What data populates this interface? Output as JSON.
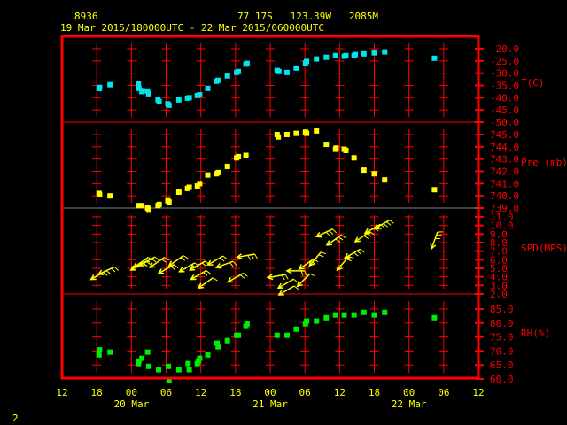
{
  "header": {
    "station": "8936",
    "location": "77.17S   123.39W   2085M",
    "range": "19 Mar 2015/180000UTC - 22 Mar 2015/060000UTC"
  },
  "footer": {
    "page": "2"
  },
  "colors": {
    "frame": "#ff0000",
    "text": "#ffff00",
    "temp": "#00e5ee",
    "pressure": "#ffff00",
    "wind": "#ffff00",
    "rh": "#00ee00",
    "divider": "#808080"
  },
  "chart_data": {
    "type": "scatter",
    "x_axis": {
      "start": "2015-03-19T12:00Z",
      "end": "2015-03-22T12:00Z",
      "tick_labels": [
        "12",
        "18",
        "00",
        "06",
        "12",
        "18",
        "00",
        "06",
        "12",
        "18",
        "00",
        "06",
        "12"
      ],
      "date_labels": [
        {
          "at": "2015-03-20T00:00Z",
          "label": "20 Mar"
        },
        {
          "at": "2015-03-21T00:00Z",
          "label": "21 Mar"
        },
        {
          "at": "2015-03-22T00:00Z",
          "label": "22 Mar"
        }
      ]
    },
    "panels": [
      {
        "name": "T(C)",
        "ylim": [
          -50,
          -20
        ],
        "ticks": [
          "-20.0",
          "-25.0",
          "-30.0",
          "-35.0",
          "-40.0",
          "-45.0",
          "-50.0"
        ],
        "color": "#00e5ee",
        "points": [
          [
            "2015-03-19T18:24Z",
            -36.3
          ],
          [
            "2015-03-19T18:30Z",
            -35.8
          ],
          [
            "2015-03-19T20:18Z",
            -34.7
          ],
          [
            "2015-03-20T01:12Z",
            -34.4
          ],
          [
            "2015-03-20T01:18Z",
            -36.2
          ],
          [
            "2015-03-20T01:48Z",
            -37.5
          ],
          [
            "2015-03-20T01:54Z",
            -37.1
          ],
          [
            "2015-03-20T02:48Z",
            -37.3
          ],
          [
            "2015-03-20T03:00Z",
            -38.4
          ],
          [
            "2015-03-20T04:36Z",
            -40.9
          ],
          [
            "2015-03-20T04:48Z",
            -41.6
          ],
          [
            "2015-03-20T06:18Z",
            -42.5
          ],
          [
            "2015-03-20T06:30Z",
            -43.1
          ],
          [
            "2015-03-20T08:12Z",
            -40.9
          ],
          [
            "2015-03-20T09:42Z",
            -40.2
          ],
          [
            "2015-03-20T10:00Z",
            -40.0
          ],
          [
            "2015-03-20T11:24Z",
            -39.1
          ],
          [
            "2015-03-20T11:48Z",
            -38.8
          ],
          [
            "2015-03-20T13:12Z",
            -36.2
          ],
          [
            "2015-03-20T14:42Z",
            -33.3
          ],
          [
            "2015-03-20T15:00Z",
            -32.9
          ],
          [
            "2015-03-20T16:36Z",
            -31.1
          ],
          [
            "2015-03-20T18:12Z",
            -29.7
          ],
          [
            "2015-03-20T18:30Z",
            -29.3
          ],
          [
            "2015-03-20T19:48Z",
            -26.3
          ],
          [
            "2015-03-20T20:00Z",
            -26.0
          ],
          [
            "2015-03-21T01:12Z",
            -28.9
          ],
          [
            "2015-03-21T01:30Z",
            -29.3
          ],
          [
            "2015-03-21T02:54Z",
            -29.7
          ],
          [
            "2015-03-21T04:30Z",
            -27.9
          ],
          [
            "2015-03-21T06:06Z",
            -25.9
          ],
          [
            "2015-03-21T06:18Z",
            -25.2
          ],
          [
            "2015-03-21T08:00Z",
            -24.2
          ],
          [
            "2015-03-21T09:42Z",
            -23.5
          ],
          [
            "2015-03-21T11:18Z",
            -22.8
          ],
          [
            "2015-03-21T12:48Z",
            -23.1
          ],
          [
            "2015-03-21T13:06Z",
            -22.8
          ],
          [
            "2015-03-21T14:30Z",
            -22.8
          ],
          [
            "2015-03-21T14:42Z",
            -22.4
          ],
          [
            "2015-03-21T16:12Z",
            -22.1
          ],
          [
            "2015-03-21T18:00Z",
            -21.7
          ],
          [
            "2015-03-21T19:48Z",
            -21.3
          ],
          [
            "2015-03-22T04:24Z",
            -23.9
          ]
        ]
      },
      {
        "name": "Pre (mb)",
        "ylim": [
          739,
          746
        ],
        "ticks": [
          "745.0",
          "744.0",
          "743.0",
          "742.0",
          "741.0",
          "740.0",
          "739.0"
        ],
        "color": "#ffff00",
        "points": [
          [
            "2015-03-19T18:24Z",
            740.2
          ],
          [
            "2015-03-19T18:30Z",
            740.1
          ],
          [
            "2015-03-19T20:18Z",
            740.0
          ],
          [
            "2015-03-20T01:12Z",
            739.2
          ],
          [
            "2015-03-20T01:48Z",
            739.2
          ],
          [
            "2015-03-20T02:48Z",
            739.0
          ],
          [
            "2015-03-20T03:00Z",
            738.9
          ],
          [
            "2015-03-20T04:36Z",
            739.2
          ],
          [
            "2015-03-20T04:48Z",
            739.3
          ],
          [
            "2015-03-20T06:18Z",
            739.6
          ],
          [
            "2015-03-20T06:30Z",
            739.5
          ],
          [
            "2015-03-20T08:12Z",
            740.3
          ],
          [
            "2015-03-20T09:42Z",
            740.6
          ],
          [
            "2015-03-20T10:00Z",
            740.7
          ],
          [
            "2015-03-20T11:24Z",
            740.8
          ],
          [
            "2015-03-20T11:48Z",
            741.0
          ],
          [
            "2015-03-20T13:12Z",
            741.7
          ],
          [
            "2015-03-20T14:42Z",
            741.8
          ],
          [
            "2015-03-20T15:00Z",
            741.9
          ],
          [
            "2015-03-20T16:36Z",
            742.4
          ],
          [
            "2015-03-20T18:12Z",
            743.1
          ],
          [
            "2015-03-20T18:30Z",
            743.2
          ],
          [
            "2015-03-20T19:48Z",
            743.3
          ],
          [
            "2015-03-21T01:12Z",
            745.0
          ],
          [
            "2015-03-21T01:24Z",
            744.8
          ],
          [
            "2015-03-21T02:54Z",
            745.0
          ],
          [
            "2015-03-21T04:30Z",
            745.1
          ],
          [
            "2015-03-21T06:06Z",
            745.2
          ],
          [
            "2015-03-21T06:18Z",
            745.1
          ],
          [
            "2015-03-21T08:00Z",
            745.3
          ],
          [
            "2015-03-21T09:42Z",
            744.2
          ],
          [
            "2015-03-21T11:18Z",
            743.8
          ],
          [
            "2015-03-21T11:24Z",
            743.9
          ],
          [
            "2015-03-21T12:48Z",
            743.8
          ],
          [
            "2015-03-21T13:06Z",
            743.7
          ],
          [
            "2015-03-21T14:30Z",
            743.1
          ],
          [
            "2015-03-21T16:12Z",
            742.1
          ],
          [
            "2015-03-21T18:00Z",
            741.8
          ],
          [
            "2015-03-21T19:48Z",
            741.3
          ],
          [
            "2015-03-22T04:24Z",
            740.5
          ]
        ]
      },
      {
        "name": "SPD(MPS)",
        "ylim": [
          2,
          12
        ],
        "ticks": [
          "11.0",
          "10.0",
          "9.0",
          "8.0",
          "7.0",
          "6.0",
          "5.0",
          "4.0",
          "3.0",
          "2.0"
        ],
        "color": "#ffff00",
        "kind": "wind-arrows",
        "points": [
          [
            "2015-03-19T17:00Z",
            3.7,
            60
          ],
          [
            "2015-03-19T18:18Z",
            4.3,
            65
          ],
          [
            "2015-03-19T23:54Z",
            4.8,
            60
          ],
          [
            "2015-03-20T00:24Z",
            5.1,
            55
          ],
          [
            "2015-03-20T01:24Z",
            5.3,
            60
          ],
          [
            "2015-03-20T03:12Z",
            5.1,
            55
          ],
          [
            "2015-03-20T04:42Z",
            4.4,
            60
          ],
          [
            "2015-03-20T06:30Z",
            5.3,
            55
          ],
          [
            "2015-03-20T08:18Z",
            4.6,
            60
          ],
          [
            "2015-03-20T10:06Z",
            4.8,
            60
          ],
          [
            "2015-03-20T10:18Z",
            3.7,
            60
          ],
          [
            "2015-03-20T11:36Z",
            2.7,
            55
          ],
          [
            "2015-03-20T13:12Z",
            5.4,
            60
          ],
          [
            "2015-03-20T14:42Z",
            5.1,
            70
          ],
          [
            "2015-03-20T16:42Z",
            3.4,
            60
          ],
          [
            "2015-03-20T18:18Z",
            6.3,
            80
          ],
          [
            "2015-03-20T23:36Z",
            3.9,
            80
          ],
          [
            "2015-03-21T01:24Z",
            2.7,
            60
          ],
          [
            "2015-03-21T01:30Z",
            1.9,
            60
          ],
          [
            "2015-03-21T02:54Z",
            4.7,
            90
          ],
          [
            "2015-03-21T05:00Z",
            4.9,
            55
          ],
          [
            "2015-03-21T04:42Z",
            2.9,
            45
          ],
          [
            "2015-03-21T06:48Z",
            5.3,
            40
          ],
          [
            "2015-03-21T08:00Z",
            8.7,
            65
          ],
          [
            "2015-03-21T09:48Z",
            7.7,
            55
          ],
          [
            "2015-03-21T11:36Z",
            4.8,
            40
          ],
          [
            "2015-03-21T12:54Z",
            6.2,
            60
          ],
          [
            "2015-03-21T14:42Z",
            8.1,
            55
          ],
          [
            "2015-03-21T16:24Z",
            9.1,
            60
          ],
          [
            "2015-03-21T18:00Z",
            9.6,
            60
          ],
          [
            "2015-03-22T03:54Z",
            7.3,
            20
          ]
        ]
      },
      {
        "name": "RH(%)",
        "ylim": [
          60,
          88
        ],
        "ticks": [
          "85.0",
          "80.0",
          "75.0",
          "70.0",
          "65.0",
          "60.0"
        ],
        "color": "#00ee00",
        "points": [
          [
            "2015-03-19T18:24Z",
            68.6
          ],
          [
            "2015-03-19T18:30Z",
            70.4
          ],
          [
            "2015-03-19T20:18Z",
            69.6
          ],
          [
            "2015-03-20T01:12Z",
            65.5
          ],
          [
            "2015-03-20T01:18Z",
            66.4
          ],
          [
            "2015-03-20T01:48Z",
            67.4
          ],
          [
            "2015-03-20T02:48Z",
            69.6
          ],
          [
            "2015-03-20T03:00Z",
            64.5
          ],
          [
            "2015-03-20T04:42Z",
            63.3
          ],
          [
            "2015-03-20T06:24Z",
            64.5
          ],
          [
            "2015-03-20T06:30Z",
            59.5
          ],
          [
            "2015-03-20T08:12Z",
            63.3
          ],
          [
            "2015-03-20T09:48Z",
            65.5
          ],
          [
            "2015-03-20T10:00Z",
            63.3
          ],
          [
            "2015-03-20T11:24Z",
            65.5
          ],
          [
            "2015-03-20T11:36Z",
            66.4
          ],
          [
            "2015-03-20T11:48Z",
            67.4
          ],
          [
            "2015-03-20T13:12Z",
            68.6
          ],
          [
            "2015-03-20T14:48Z",
            72.8
          ],
          [
            "2015-03-20T15:00Z",
            71.5
          ],
          [
            "2015-03-20T16:36Z",
            73.7
          ],
          [
            "2015-03-20T18:12Z",
            75.6
          ],
          [
            "2015-03-20T18:30Z",
            75.6
          ],
          [
            "2015-03-20T19:48Z",
            78.8
          ],
          [
            "2015-03-20T20:00Z",
            79.7
          ],
          [
            "2015-03-21T01:12Z",
            75.6
          ],
          [
            "2015-03-21T02:54Z",
            75.6
          ],
          [
            "2015-03-21T04:30Z",
            77.8
          ],
          [
            "2015-03-21T06:06Z",
            79.7
          ],
          [
            "2015-03-21T06:18Z",
            80.7
          ],
          [
            "2015-03-21T08:00Z",
            80.7
          ],
          [
            "2015-03-21T09:42Z",
            81.9
          ],
          [
            "2015-03-21T11:18Z",
            82.9
          ],
          [
            "2015-03-21T12:48Z",
            82.9
          ],
          [
            "2015-03-21T14:30Z",
            82.9
          ],
          [
            "2015-03-21T16:12Z",
            83.8
          ],
          [
            "2015-03-21T18:00Z",
            82.9
          ],
          [
            "2015-03-21T19:48Z",
            83.8
          ],
          [
            "2015-03-22T04:24Z",
            81.9
          ]
        ]
      }
    ]
  }
}
